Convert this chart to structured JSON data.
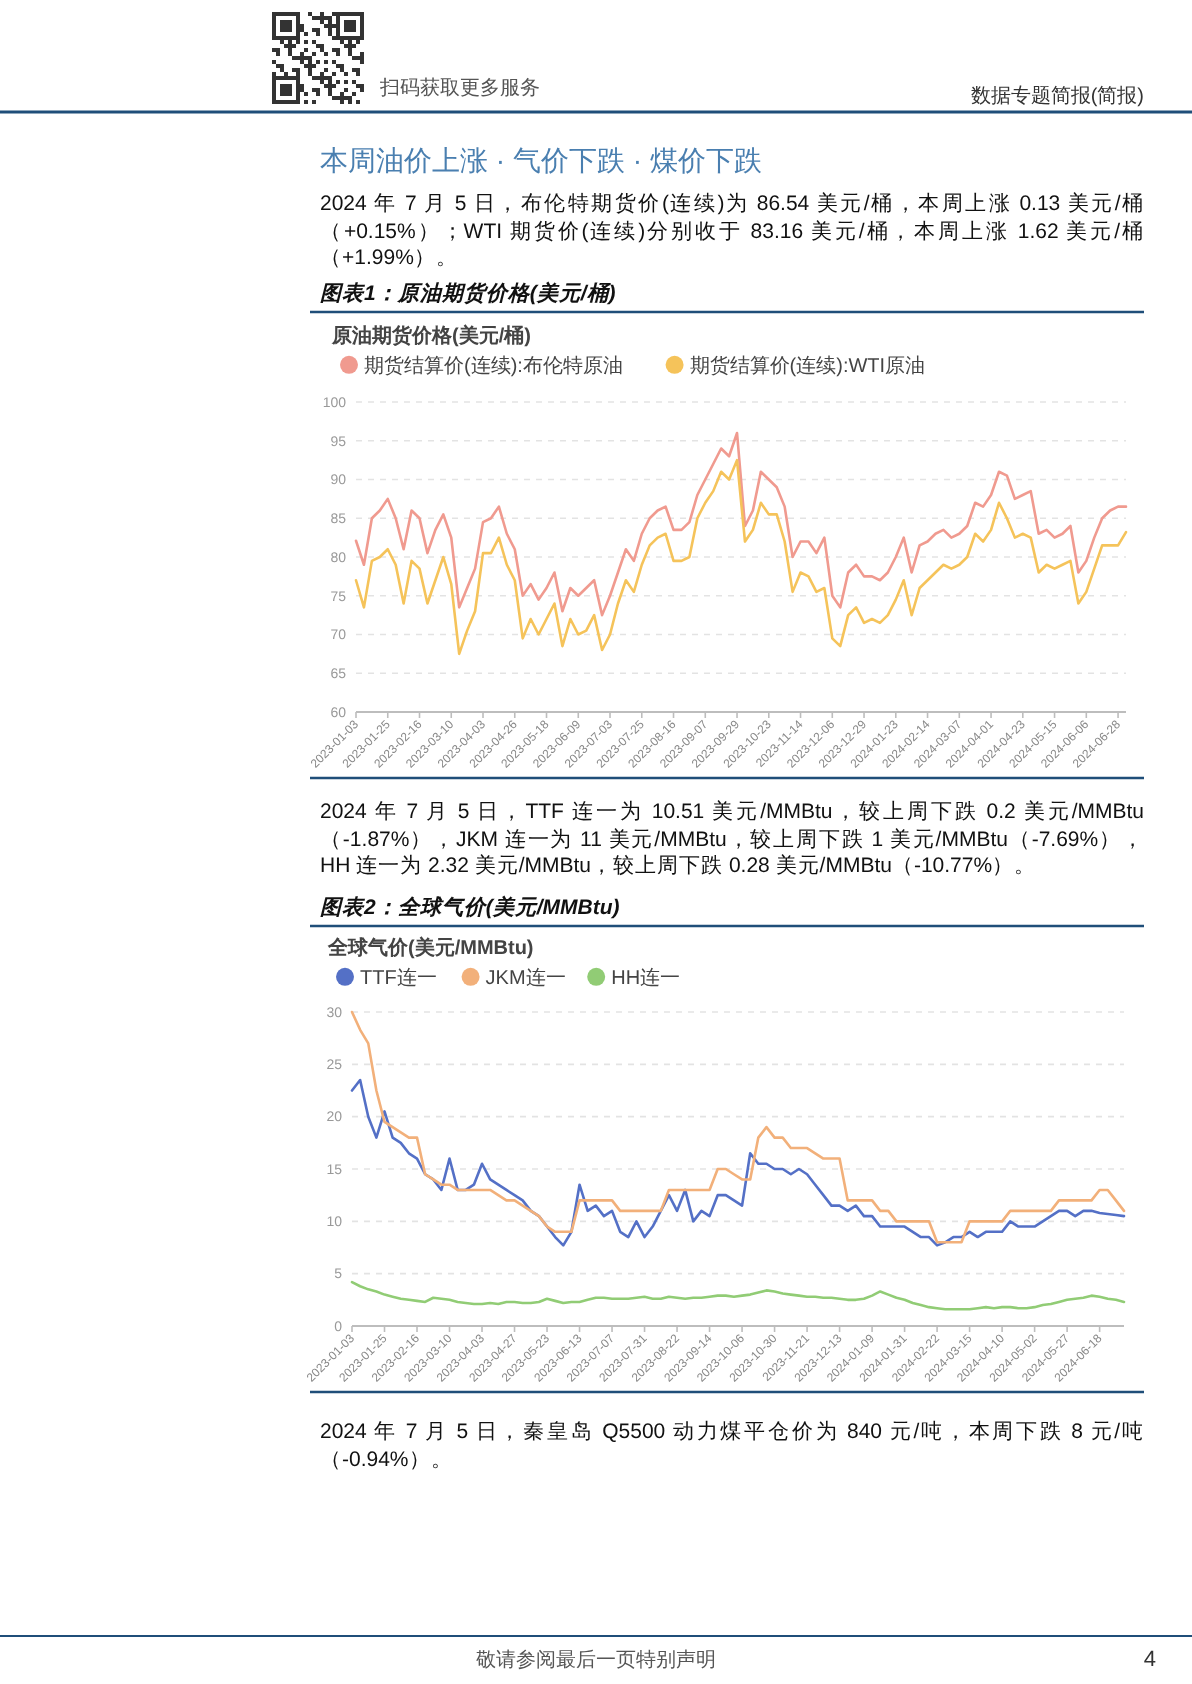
{
  "chart_data": [
    {
      "type": "line",
      "title": "图表1：原油期货价格(美元/桶)",
      "ylabel": "原油期货价格(美元/桶)",
      "categories": [
        "2023-01-03",
        null,
        null,
        null,
        "2023-01-25",
        null,
        null,
        null,
        "2023-02-16",
        null,
        null,
        null,
        "2023-03-10",
        null,
        null,
        null,
        "2023-04-03",
        null,
        null,
        null,
        "2023-04-26",
        null,
        null,
        null,
        "2023-05-18",
        null,
        null,
        null,
        "2023-06-09",
        null,
        null,
        null,
        "2023-07-03",
        null,
        null,
        null,
        "2023-07-25",
        null,
        null,
        null,
        "2023-08-16",
        null,
        null,
        null,
        "2023-09-07",
        null,
        null,
        null,
        "2023-09-29",
        null,
        null,
        null,
        "2023-10-23",
        null,
        null,
        null,
        "2023-11-14",
        null,
        null,
        null,
        "2023-12-06",
        null,
        null,
        null,
        "2023-12-29",
        null,
        null,
        null,
        "2024-01-23",
        null,
        null,
        null,
        "2024-02-14",
        null,
        null,
        null,
        "2024-03-07",
        null,
        null,
        null,
        "2024-04-01",
        null,
        null,
        null,
        "2024-04-23",
        null,
        null,
        null,
        "2024-05-15",
        null,
        null,
        null,
        "2024-06-06",
        null,
        null,
        null,
        "2024-06-28",
        null
      ],
      "series": [
        {
          "name": "期货结算价(连续):布伦特原油",
          "color": "#f09a8f",
          "values": [
            82.1,
            79,
            85,
            86,
            87.5,
            85,
            81,
            86,
            85,
            80.5,
            83.5,
            85.5,
            82.5,
            73.5,
            76,
            78.5,
            84.5,
            85,
            86.5,
            83,
            81,
            75,
            76.5,
            74.5,
            76,
            78,
            73,
            76,
            75,
            76,
            77,
            72.5,
            75,
            78,
            81,
            79.5,
            83,
            85,
            86,
            86.5,
            83.5,
            83.5,
            84.5,
            88,
            90,
            92,
            94,
            93,
            96,
            84,
            86,
            91,
            90,
            89,
            86.5,
            80,
            82,
            82,
            80.5,
            82.5,
            75,
            73.5,
            78,
            79,
            77.5,
            77.5,
            77,
            78,
            80,
            82.5,
            78,
            81.5,
            82,
            83,
            83.5,
            82.5,
            83,
            84,
            87,
            86.5,
            88,
            91,
            90.5,
            87.5,
            88,
            88.5,
            83,
            83.5,
            82.5,
            83,
            84,
            78,
            79.5,
            82.5,
            85,
            86,
            86.5,
            86.5
          ]
        },
        {
          "name": "期货结算价(连续):WTI原油",
          "color": "#f5c35a",
          "values": [
            77,
            73.5,
            79.5,
            80,
            81,
            79,
            74,
            79.5,
            78.5,
            74,
            77,
            80,
            76.5,
            67.5,
            70.5,
            73,
            80.5,
            80.5,
            82.5,
            79,
            77,
            69.5,
            72,
            70,
            72,
            74,
            68.5,
            72,
            70,
            70.5,
            72.5,
            68,
            70,
            74,
            77,
            75.5,
            79,
            81.5,
            82.5,
            83,
            79.5,
            79.5,
            80,
            85,
            87,
            88.5,
            91,
            90,
            92.5,
            82,
            83.5,
            87,
            85.5,
            85.5,
            82,
            75.5,
            78,
            77.5,
            75.5,
            76,
            69.5,
            68.5,
            72.5,
            73.5,
            71.5,
            72,
            71.5,
            72.5,
            74.5,
            77,
            72.5,
            76,
            77,
            78,
            79,
            78.5,
            79,
            80,
            83,
            82,
            83.5,
            87,
            85,
            82.5,
            83,
            82.5,
            78,
            79,
            78.5,
            79,
            79.5,
            74,
            75.5,
            78.5,
            81.5,
            81.5,
            81.5,
            83.2
          ]
        }
      ],
      "ylim": [
        60,
        100
      ],
      "yticks": [
        60,
        65,
        70,
        75,
        80,
        85,
        90,
        95,
        100
      ],
      "grid": "y",
      "legend": "top left",
      "annotations": [
        "扫码获取更多服务",
        "数据专题简报(简报)",
        "本周油价上涨 · 气价下跌 · 煤价下跌",
        "2024 年 7 月 5 日，布伦特期货价(连续)为 86.54 美元/桶，本周上涨 0.13 美元/桶（+0.15%）；WTI 期货价(连续)分别收于 83.16 美元/桶，本周上涨 1.62 美元/桶（+1.99%）。"
      ]
    },
    {
      "type": "line",
      "title": "图表2：全球气价(美元/MMBtu)",
      "ylabel": "全球气价(美元/MMBtu)",
      "categories": [
        "2023-01-03",
        null,
        null,
        null,
        "2023-01-25",
        null,
        null,
        null,
        "2023-02-16",
        null,
        null,
        null,
        "2023-03-10",
        null,
        null,
        null,
        "2023-04-03",
        null,
        null,
        null,
        "2023-04-27",
        null,
        null,
        null,
        "2023-05-23",
        null,
        null,
        null,
        "2023-06-13",
        null,
        null,
        null,
        "2023-07-07",
        null,
        null,
        null,
        "2023-07-31",
        null,
        null,
        null,
        "2023-08-22",
        null,
        null,
        null,
        "2023-09-14",
        null,
        null,
        null,
        "2023-10-06",
        null,
        null,
        null,
        "2023-10-30",
        null,
        null,
        null,
        "2023-11-21",
        null,
        null,
        null,
        "2023-12-13",
        null,
        null,
        null,
        "2024-01-09",
        null,
        null,
        null,
        "2024-01-31",
        null,
        null,
        null,
        "2024-02-22",
        null,
        null,
        null,
        "2024-03-15",
        null,
        null,
        null,
        "2024-04-10",
        null,
        null,
        null,
        "2024-05-02",
        null,
        null,
        null,
        "2024-05-27",
        null,
        null,
        null,
        "2024-06-18",
        null,
        null,
        null
      ],
      "series": [
        {
          "name": "TTF连一",
          "color": "#5470c6",
          "values": [
            22.5,
            23.5,
            20,
            18,
            20.5,
            18,
            17.5,
            16.5,
            16,
            14.5,
            14,
            13,
            16,
            13,
            13,
            13.5,
            15.5,
            14,
            13.5,
            13,
            12.5,
            12,
            11,
            10.5,
            9.5,
            8.5,
            7.7,
            9,
            13.5,
            11,
            11.5,
            10.5,
            11,
            9,
            8.5,
            10,
            8.5,
            9.5,
            11,
            12.5,
            11,
            13,
            10,
            11,
            10.5,
            12.5,
            12.5,
            12,
            11.5,
            16.5,
            15.5,
            15.5,
            15,
            15,
            14.5,
            15,
            14.5,
            13.5,
            12.5,
            11.5,
            11.5,
            11,
            11.5,
            10.5,
            10.5,
            9.5,
            9.5,
            9.5,
            9.5,
            9,
            8.5,
            8.5,
            7.7,
            8,
            8.5,
            8.5,
            9,
            8.5,
            9,
            9,
            9,
            10,
            9.5,
            9.5,
            9.5,
            10,
            10.5,
            11,
            11,
            10.5,
            11,
            11,
            10.8,
            10.7,
            10.6,
            10.5
          ]
        },
        {
          "name": "JKM连一",
          "color": "#f2b07a",
          "values": [
            30,
            28.3,
            27,
            22.5,
            19.5,
            19,
            18.5,
            18,
            18,
            14.5,
            14,
            13.5,
            13.5,
            13,
            13,
            13,
            13,
            13,
            12.5,
            12,
            12,
            11.5,
            11,
            10.5,
            9.5,
            9,
            9,
            9,
            12,
            12,
            12,
            12,
            12,
            11,
            11,
            11,
            11,
            11,
            11,
            13,
            13,
            13,
            13,
            13,
            13,
            15,
            15,
            14.5,
            14,
            14,
            18,
            19,
            18,
            18,
            17,
            17,
            17,
            16.5,
            16,
            16,
            16,
            12,
            12,
            12,
            12,
            11,
            11,
            10,
            10,
            10,
            10,
            10,
            8,
            8,
            8,
            8,
            10,
            10,
            10,
            10,
            10,
            11,
            11,
            11,
            11,
            11,
            11,
            12,
            12,
            12,
            12,
            12,
            13,
            13,
            12,
            11
          ]
        },
        {
          "name": "HH连一",
          "color": "#91cc75",
          "values": [
            4.2,
            3.8,
            3.5,
            3.3,
            3,
            2.8,
            2.6,
            2.5,
            2.4,
            2.3,
            2.7,
            2.6,
            2.5,
            2.3,
            2.2,
            2.1,
            2.1,
            2.2,
            2.1,
            2.3,
            2.3,
            2.2,
            2.2,
            2.3,
            2.6,
            2.4,
            2.2,
            2.3,
            2.3,
            2.5,
            2.7,
            2.7,
            2.6,
            2.6,
            2.6,
            2.7,
            2.8,
            2.6,
            2.6,
            2.8,
            2.7,
            2.6,
            2.7,
            2.7,
            2.8,
            2.9,
            2.9,
            2.8,
            2.9,
            3,
            3.2,
            3.4,
            3.3,
            3.1,
            3,
            2.9,
            2.8,
            2.8,
            2.7,
            2.7,
            2.6,
            2.5,
            2.5,
            2.6,
            2.9,
            3.3,
            3,
            2.7,
            2.5,
            2.2,
            2,
            1.8,
            1.7,
            1.6,
            1.6,
            1.6,
            1.6,
            1.7,
            1.8,
            1.7,
            1.8,
            1.8,
            1.7,
            1.7,
            1.8,
            2,
            2.1,
            2.3,
            2.5,
            2.6,
            2.7,
            2.9,
            2.8,
            2.6,
            2.5,
            2.3
          ]
        }
      ],
      "ylim": [
        0,
        30
      ],
      "yticks": [
        0,
        5,
        10,
        15,
        20,
        25,
        30
      ],
      "grid": "y",
      "legend": "top left",
      "annotations": [
        "2024 年 7 月 5 日，TTF 连一为 10.51 美元/MMBtu，较上周下跌 0.2 美元/MMBtu（-1.87%），JKM 连一为 11 美元/MMBtu，较上周下跌 1 美元/MMBtu（-7.69%），HH 连一为 2.32 美元/MMBtu，较上周下跌 0.28 美元/MMBtu（-10.77%）。",
        "2024 年 7 月 5 日，秦皇岛 Q5500 动力煤平仓价为 840 元/吨，本周下跌 8 元/吨（-0.94%）。",
        "敬请参阅最后一页特别声明",
        "4"
      ]
    }
  ]
}
